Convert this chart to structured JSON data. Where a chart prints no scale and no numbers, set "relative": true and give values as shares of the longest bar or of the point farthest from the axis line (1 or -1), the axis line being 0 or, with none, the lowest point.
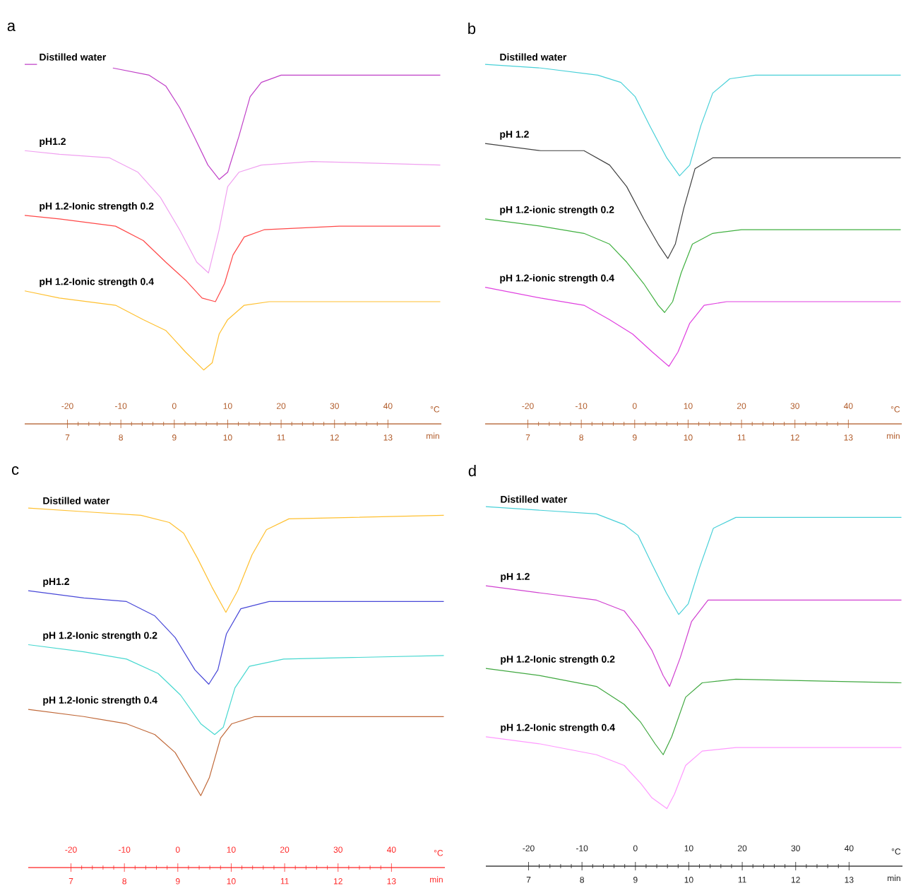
{
  "chart_data": [
    {
      "type": "line",
      "title": "a",
      "xlabel": "min",
      "x2label": "°C",
      "relative": true,
      "xlim": [
        6.2,
        14
      ],
      "xticks": [
        7,
        8,
        9,
        10,
        11,
        12,
        13
      ],
      "x2lim": [
        -28,
        50
      ],
      "x2ticks": [
        -20,
        -10,
        0,
        10,
        20,
        30,
        40
      ],
      "series": [
        {
          "name": "Distilled water",
          "color": "#c040c8",
          "x": [
            6.2,
            6.43,
            7.5,
            7.85,
            8.53,
            8.84,
            9.1,
            9.37,
            9.63,
            9.84,
            10.0,
            10.21,
            10.42,
            10.63,
            11.0,
            12.1,
            13.98
          ],
          "values": [
            1.0,
            1.0,
            null,
            0.99,
            0.97,
            0.94,
            0.88,
            0.8,
            0.72,
            0.68,
            0.7,
            0.8,
            0.91,
            0.95,
            0.97,
            0.97,
            0.97
          ]
        },
        {
          "name": "pH1.2",
          "color": "#f0a0f0",
          "x": [
            6.2,
            6.85,
            7.79,
            8.32,
            8.74,
            9.1,
            9.42,
            9.64,
            9.84,
            10.0,
            10.21,
            10.63,
            11.57,
            13.98
          ],
          "values": [
            0.76,
            0.75,
            0.74,
            0.7,
            0.63,
            0.54,
            0.45,
            0.42,
            0.54,
            0.66,
            0.7,
            0.72,
            0.73,
            0.72
          ]
        },
        {
          "name": "pH 1.2-Ionic strength 0.2",
          "color": "#ff4848",
          "x": [
            6.2,
            6.85,
            7.9,
            8.42,
            8.84,
            9.21,
            9.52,
            9.77,
            9.94,
            10.1,
            10.31,
            10.68,
            12.09,
            13.98
          ],
          "values": [
            0.58,
            0.57,
            0.55,
            0.51,
            0.45,
            0.4,
            0.35,
            0.34,
            0.39,
            0.47,
            0.52,
            0.54,
            0.55,
            0.55
          ]
        },
        {
          "name": "pH 1.2-Ionic strength 0.4",
          "color": "#ffc030",
          "x": [
            6.2,
            6.85,
            7.9,
            8.42,
            8.84,
            9.21,
            9.55,
            9.71,
            9.84,
            10.0,
            10.31,
            10.78,
            13.98
          ],
          "values": [
            0.37,
            0.35,
            0.33,
            0.29,
            0.26,
            0.2,
            0.15,
            0.17,
            0.25,
            0.29,
            0.33,
            0.34,
            0.34
          ]
        }
      ]
    },
    {
      "type": "line",
      "title": "b",
      "xlabel": "min",
      "x2label": "°C",
      "relative": true,
      "xlim": [
        6.2,
        14
      ],
      "xticks": [
        7,
        8,
        9,
        10,
        11,
        12,
        13
      ],
      "x2lim": [
        -28,
        50
      ],
      "x2ticks": [
        -20,
        -10,
        0,
        10,
        20,
        30,
        40
      ],
      "series": [
        {
          "name": "Distilled water",
          "color": "#48d0d8",
          "x": [
            6.2,
            7.24,
            8.31,
            8.74,
            9.01,
            9.28,
            9.6,
            9.84,
            10.03,
            10.24,
            10.46,
            10.78,
            11.26,
            13.98
          ],
          "values": [
            1.0,
            0.99,
            0.97,
            0.95,
            0.91,
            0.83,
            0.74,
            0.69,
            0.72,
            0.83,
            0.92,
            0.96,
            0.97,
            0.97
          ]
        },
        {
          "name": "pH 1.2",
          "color": "#404040",
          "x": [
            6.2,
            7.24,
            8.05,
            8.53,
            8.85,
            9.17,
            9.44,
            9.62,
            9.76,
            9.92,
            10.13,
            10.46,
            11.0,
            13.98
          ],
          "values": [
            0.78,
            0.76,
            0.76,
            0.72,
            0.66,
            0.57,
            0.5,
            0.46,
            0.5,
            0.6,
            0.71,
            0.74,
            0.74,
            0.74
          ]
        },
        {
          "name": "pH 1.2-ionic strength 0.2",
          "color": "#40b040",
          "x": [
            6.2,
            7.24,
            8.05,
            8.53,
            8.85,
            9.17,
            9.44,
            9.56,
            9.71,
            9.87,
            10.08,
            10.46,
            11.0,
            13.98
          ],
          "values": [
            0.57,
            0.55,
            0.53,
            0.5,
            0.45,
            0.39,
            0.33,
            0.31,
            0.34,
            0.42,
            0.5,
            0.53,
            0.54,
            0.54
          ]
        },
        {
          "name": "pH 1.2-ionic strength 0.4",
          "color": "#e040e0",
          "x": [
            6.2,
            7.24,
            8.05,
            8.53,
            8.96,
            9.33,
            9.64,
            9.81,
            10.03,
            10.3,
            10.72,
            11.53,
            13.98
          ],
          "values": [
            0.38,
            0.35,
            0.33,
            0.29,
            0.25,
            0.2,
            0.16,
            0.2,
            0.28,
            0.33,
            0.34,
            0.34,
            0.34
          ]
        }
      ]
    },
    {
      "type": "line",
      "title": "c",
      "xlabel": "min",
      "x2label": "°C",
      "relative": true,
      "xlim": [
        6.2,
        14
      ],
      "xticks": [
        7,
        8,
        9,
        10,
        11,
        12,
        13
      ],
      "x2lim": [
        -28,
        50
      ],
      "x2ticks": [
        -20,
        -10,
        0,
        10,
        20,
        30,
        40
      ],
      "series": [
        {
          "name": "Distilled water",
          "color": "#ffc030",
          "x": [
            6.2,
            7.24,
            8.31,
            8.84,
            9.11,
            9.37,
            9.64,
            9.9,
            10.12,
            10.39,
            10.66,
            11.08,
            13.98
          ],
          "values": [
            1.0,
            0.99,
            0.98,
            0.96,
            0.93,
            0.86,
            0.78,
            0.71,
            0.77,
            0.87,
            0.94,
            0.97,
            0.98
          ]
        },
        {
          "name": "pH1.2",
          "color": "#4848d8",
          "x": [
            6.2,
            7.24,
            8.04,
            8.57,
            8.95,
            9.32,
            9.58,
            9.75,
            9.91,
            10.18,
            10.71,
            13.98
          ],
          "values": [
            0.77,
            0.75,
            0.74,
            0.7,
            0.64,
            0.55,
            0.51,
            0.55,
            0.65,
            0.72,
            0.74,
            0.74
          ]
        },
        {
          "name": "pH 1.2-Ionic strength 0.2",
          "color": "#48d8d0",
          "x": [
            6.2,
            7.24,
            8.04,
            8.63,
            9.05,
            9.43,
            9.69,
            9.85,
            10.07,
            10.34,
            10.98,
            13.98
          ],
          "values": [
            0.62,
            0.6,
            0.58,
            0.54,
            0.48,
            0.4,
            0.37,
            0.39,
            0.5,
            0.56,
            0.58,
            0.59
          ]
        },
        {
          "name": "pH 1.2-Ionic strength 0.4",
          "color": "#c06838",
          "x": [
            6.2,
            7.24,
            8.04,
            8.57,
            8.95,
            9.27,
            9.43,
            9.59,
            9.8,
            10.01,
            10.44,
            13.98
          ],
          "values": [
            0.44,
            0.42,
            0.4,
            0.37,
            0.32,
            0.24,
            0.2,
            0.25,
            0.36,
            0.4,
            0.42,
            0.42
          ]
        }
      ]
    },
    {
      "type": "line",
      "title": "d",
      "xlabel": "min",
      "x2label": "°C",
      "relative": true,
      "xlim": [
        6.2,
        14
      ],
      "xticks": [
        7,
        8,
        9,
        10,
        11,
        12,
        13
      ],
      "x2lim": [
        -28,
        50
      ],
      "x2ticks": [
        -20,
        -10,
        0,
        10,
        20,
        30,
        40
      ],
      "series": [
        {
          "name": "Distilled water",
          "color": "#48d0d8",
          "x": [
            6.2,
            7.22,
            8.27,
            8.79,
            9.05,
            9.31,
            9.58,
            9.81,
            9.99,
            10.2,
            10.46,
            10.88,
            13.98
          ],
          "values": [
            1.0,
            0.99,
            0.98,
            0.95,
            0.92,
            0.84,
            0.76,
            0.7,
            0.73,
            0.83,
            0.94,
            0.97,
            0.97
          ]
        },
        {
          "name": "pH 1.2",
          "color": "#d040d0",
          "x": [
            6.2,
            7.22,
            8.27,
            8.79,
            9.05,
            9.31,
            9.52,
            9.64,
            9.84,
            10.05,
            10.36,
            10.88,
            13.98
          ],
          "values": [
            0.78,
            0.76,
            0.74,
            0.71,
            0.66,
            0.6,
            0.53,
            0.5,
            0.58,
            0.68,
            0.74,
            0.74,
            0.74
          ]
        },
        {
          "name": "pH 1.2-Ionic strength 0.2",
          "color": "#40a840",
          "x": [
            6.2,
            7.22,
            8.27,
            8.79,
            9.1,
            9.37,
            9.52,
            9.68,
            9.94,
            10.25,
            10.88,
            13.98
          ],
          "values": [
            0.55,
            0.53,
            0.5,
            0.45,
            0.4,
            0.34,
            0.31,
            0.36,
            0.47,
            0.51,
            0.52,
            0.51
          ]
        },
        {
          "name": "pH 1.2-Ionic strength 0.4",
          "color": "#ff99ff",
          "x": [
            6.2,
            7.22,
            8.27,
            8.79,
            9.1,
            9.31,
            9.59,
            9.73,
            9.94,
            10.25,
            10.88,
            13.98
          ],
          "values": [
            0.36,
            0.34,
            0.31,
            0.28,
            0.23,
            0.19,
            0.16,
            0.2,
            0.28,
            0.32,
            0.33,
            0.33
          ]
        }
      ]
    }
  ]
}
